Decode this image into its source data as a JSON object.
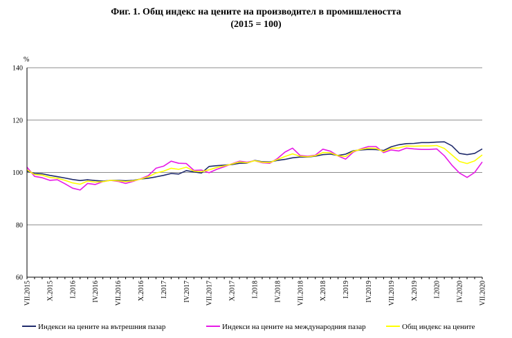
{
  "title": "Фиг. 1. Общ индекс на цените на производител в промишлеността",
  "subtitle": "(2015 = 100)",
  "chart_data": {
    "type": "line",
    "ylabel": "%",
    "ylim": [
      60,
      140
    ],
    "yticks": [
      60,
      80,
      100,
      120,
      140
    ],
    "grid": true,
    "legend_position": "bottom",
    "x": [
      "VII.2015",
      "VIII.2015",
      "IX.2015",
      "X.2015",
      "XI.2015",
      "XII.2015",
      "I.2016",
      "II.2016",
      "III.2016",
      "IV.2016",
      "V.2016",
      "VI.2016",
      "VII.2016",
      "VIII.2016",
      "IX.2016",
      "X.2016",
      "XI.2016",
      "XII.2016",
      "I.2017",
      "II.2017",
      "III.2017",
      "IV.2017",
      "V.2017",
      "VI.2017",
      "VII.2017",
      "VIII.2017",
      "IX.2017",
      "X.2017",
      "XI.2017",
      "XII.2017",
      "I.2018",
      "II.2018",
      "III.2018",
      "IV.2018",
      "V.2018",
      "VI.2018",
      "VII.2018",
      "VIII.2018",
      "IX.2018",
      "X.2018",
      "XI.2018",
      "XII.2018",
      "I.2019",
      "II.2019",
      "III.2019",
      "IV.2019",
      "V.2019",
      "VI.2019",
      "VII.2019",
      "VIII.2019",
      "IX.2019",
      "X.2019",
      "XI.2019",
      "XII.2019",
      "I.2020",
      "II.2020",
      "III.2020",
      "IV.2020",
      "V.2020",
      "VI.2020",
      "VII.2020"
    ],
    "xtick_labels": [
      "VII.2015",
      "X.2015",
      "I.2016",
      "IV.2016",
      "VII.2016",
      "X.2016",
      "I.2017",
      "IV.2017",
      "VII.2017",
      "X.2017",
      "I.2018",
      "IV.2018",
      "VII.2018",
      "X.2018",
      "I.2019",
      "IV.2019",
      "VII.2019",
      "X.2019",
      "I.2020",
      "IV.2020",
      "VII.2020"
    ],
    "series": [
      {
        "name": "Индекси на цените на вътрешния пазар",
        "color": "#1f2a6b",
        "values": [
          100.5,
          99.6,
          99.5,
          98.9,
          98.4,
          97.9,
          97.3,
          96.9,
          97.2,
          96.9,
          96.7,
          97.0,
          97.0,
          96.8,
          97.0,
          97.5,
          97.8,
          98.3,
          98.9,
          99.6,
          99.4,
          100.7,
          100.2,
          99.8,
          102.3,
          102.6,
          102.8,
          103.0,
          103.5,
          103.6,
          104.6,
          104.1,
          104.0,
          104.6,
          105.0,
          105.6,
          105.9,
          105.9,
          106.2,
          106.8,
          107.0,
          106.5,
          107.0,
          108.3,
          108.6,
          108.8,
          108.7,
          108.4,
          109.8,
          110.6,
          111.0,
          111.1,
          111.4,
          111.4,
          111.6,
          111.7,
          110.2,
          107.3,
          106.8,
          107.3,
          109.0
        ]
      },
      {
        "name": "Индекси на цените на международния пазар",
        "color": "#e619e6",
        "values": [
          102.0,
          98.5,
          98.0,
          97.0,
          97.2,
          95.7,
          94.0,
          93.3,
          95.8,
          95.4,
          96.5,
          97.0,
          96.6,
          95.8,
          96.6,
          97.6,
          98.8,
          101.6,
          102.4,
          104.3,
          103.5,
          103.4,
          100.8,
          100.9,
          99.9,
          101.2,
          102.2,
          103.3,
          104.3,
          103.9,
          104.5,
          103.7,
          103.5,
          105.3,
          107.8,
          109.3,
          106.5,
          106.2,
          106.6,
          108.9,
          108.1,
          106.3,
          105.1,
          107.8,
          109.0,
          109.9,
          109.9,
          107.6,
          108.6,
          108.2,
          109.3,
          109.0,
          108.8,
          108.8,
          109.0,
          106.4,
          102.8,
          99.8,
          98.1,
          100.0,
          104.0
        ]
      },
      {
        "name": "Общ индекс на цените",
        "color": "#ffff00",
        "values": [
          101.0,
          99.2,
          99.0,
          98.1,
          97.8,
          97.0,
          96.0,
          95.5,
          96.7,
          96.3,
          96.5,
          97.0,
          96.8,
          96.5,
          96.8,
          97.5,
          98.4,
          99.8,
          100.5,
          101.6,
          101.2,
          102.0,
          100.5,
          100.3,
          101.0,
          101.9,
          102.5,
          103.2,
          104.0,
          103.7,
          104.5,
          103.9,
          103.8,
          104.9,
          106.1,
          107.1,
          106.2,
          106.0,
          106.4,
          107.6,
          107.5,
          106.4,
          106.1,
          108.1,
          108.8,
          109.3,
          109.2,
          108.0,
          109.2,
          109.4,
          110.1,
          110.0,
          110.1,
          110.1,
          110.3,
          109.2,
          106.7,
          104.2,
          103.4,
          104.4,
          106.7
        ]
      }
    ]
  }
}
